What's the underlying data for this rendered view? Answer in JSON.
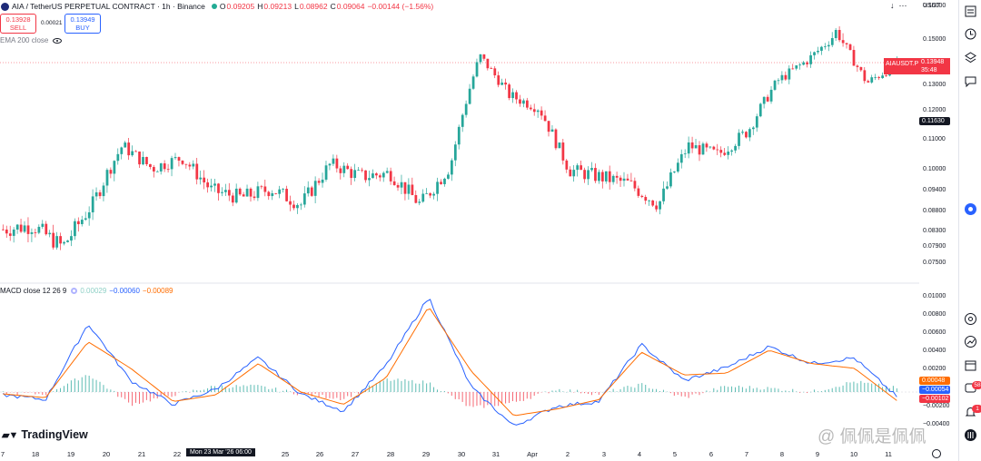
{
  "header": {
    "title": "AIA / TetherUS PERPETUAL CONTRACT · 1h · Binance",
    "ohlc": [
      {
        "label": "O",
        "value": "0.09205"
      },
      {
        "label": "H",
        "value": "0.09213"
      },
      {
        "label": "L",
        "value": "0.08962"
      },
      {
        "label": "C",
        "value": "0.09064"
      }
    ],
    "change": "−0.00144 (−1.56%)",
    "sell_price": "0.13928",
    "sell_label": "SELL",
    "spread": "0.00021",
    "buy_price": "0.13949",
    "buy_label": "BUY",
    "currency": "USDT"
  },
  "indicators": {
    "ema_label": "EMA 200 close",
    "macd_label": "MACD close 12 26 9",
    "macd_hist": "0.00029",
    "macd_value": "−0.00060",
    "macd_signal": "−0.00089"
  },
  "price_axis": [
    "0.16000",
    "0.15000",
    "0.14000",
    "0.13000",
    "0.12000",
    "0.11000",
    "0.10000",
    "0.09400",
    "0.08800",
    "0.08300",
    "0.07900",
    "0.07500"
  ],
  "price_badges": {
    "symbol": "AIAUSDT.P",
    "last_price": "0.13948",
    "countdown": "35:48",
    "crosshair_price": "0.11630"
  },
  "macd_axis": [
    "0.01000",
    "0.00800",
    "0.00600",
    "0.00400",
    "0.00200",
    "−0.00200",
    "−0.00400"
  ],
  "macd_badges": {
    "hist": "0.00048",
    "macd": "−0.00054",
    "signal": "−0.00102"
  },
  "time_axis": [
    "7",
    "18",
    "19",
    "20",
    "21",
    "22",
    "25",
    "26",
    "27",
    "28",
    "29",
    "30",
    "31",
    "Apr",
    "2",
    "3",
    "4",
    "5",
    "6",
    "7",
    "8",
    "9",
    "10",
    "11"
  ],
  "time_cursor": "Mon 23 Mar '26  06:00",
  "branding": "TradingView",
  "watermark": "@ 佩佩是佩佩",
  "toolbar": {
    "badge_alerts": "58",
    "badge_notifications": "1"
  },
  "colors": {
    "up": "#26a69a",
    "down": "#f23645",
    "macd": "#2962ff",
    "signal": "#ff6d00",
    "accent": "#2962ff"
  },
  "chart_data": {
    "type": "candlestick",
    "interval": "1h",
    "ylim": [
      0.075,
      0.16
    ],
    "close_path_approx": [
      {
        "x": "Mar 17",
        "y": 0.0835
      },
      {
        "x": "Mar 18",
        "y": 0.0845
      },
      {
        "x": "Mar 18 late",
        "y": 0.079
      },
      {
        "x": "Mar 19",
        "y": 0.09
      },
      {
        "x": "Mar 20",
        "y": 0.108
      },
      {
        "x": "Mar 20 late",
        "y": 0.1005
      },
      {
        "x": "Mar 21",
        "y": 0.104
      },
      {
        "x": "Mar 22",
        "y": 0.094
      },
      {
        "x": "Mar 23",
        "y": 0.092
      },
      {
        "x": "Mar 24",
        "y": 0.0945
      },
      {
        "x": "Mar 25",
        "y": 0.09
      },
      {
        "x": "Mar 25 late",
        "y": 0.102
      },
      {
        "x": "Mar 26",
        "y": 0.098
      },
      {
        "x": "Mar 27",
        "y": 0.099
      },
      {
        "x": "Mar 28",
        "y": 0.09
      },
      {
        "x": "Mar 29",
        "y": 0.101
      },
      {
        "x": "Mar 30",
        "y": 0.143
      },
      {
        "x": "Mar 30 late",
        "y": 0.126
      },
      {
        "x": "Mar 31",
        "y": 0.121
      },
      {
        "x": "Apr 1",
        "y": 0.1
      },
      {
        "x": "Apr 2",
        "y": 0.098
      },
      {
        "x": "Apr 3",
        "y": 0.096
      },
      {
        "x": "Apr 4",
        "y": 0.09
      },
      {
        "x": "Apr 5",
        "y": 0.108
      },
      {
        "x": "Apr 6",
        "y": 0.105
      },
      {
        "x": "Apr 7",
        "y": 0.113
      },
      {
        "x": "Apr 8",
        "y": 0.132
      },
      {
        "x": "Apr 9",
        "y": 0.141
      },
      {
        "x": "Apr 10",
        "y": 0.153
      },
      {
        "x": "Apr 10 late",
        "y": 0.131
      },
      {
        "x": "Apr 11",
        "y": 0.1395
      }
    ],
    "macd_path_approx": [
      {
        "x": "Mar 17",
        "macd": -0.0003,
        "signal": -0.0002
      },
      {
        "x": "Mar 19",
        "macd": -0.0008,
        "signal": -0.0006
      },
      {
        "x": "Mar 20",
        "macd": 0.0072,
        "signal": 0.0053
      },
      {
        "x": "Mar 21",
        "macd": 0.0012,
        "signal": 0.0025
      },
      {
        "x": "Mar 22",
        "macd": -0.0013,
        "signal": -0.001
      },
      {
        "x": "Mar 24",
        "macd": 0.0003,
        "signal": -0.0003
      },
      {
        "x": "Mar 25",
        "macd": 0.0036,
        "signal": 0.003
      },
      {
        "x": "Mar 27",
        "macd": -0.0002,
        "signal": 0.0
      },
      {
        "x": "Mar 28",
        "macd": -0.002,
        "signal": -0.0013
      },
      {
        "x": "Mar 29",
        "macd": 0.0028,
        "signal": 0.0015
      },
      {
        "x": "Mar 30",
        "macd": 0.01,
        "signal": 0.009
      },
      {
        "x": "Mar 31",
        "macd": 0.0005,
        "signal": 0.0022
      },
      {
        "x": "Apr 2",
        "macd": -0.0036,
        "signal": -0.0025
      },
      {
        "x": "Apr 3",
        "macd": -0.0015,
        "signal": -0.0018
      },
      {
        "x": "Apr 4",
        "macd": -0.001,
        "signal": -0.0008
      },
      {
        "x": "Apr 5",
        "macd": 0.005,
        "signal": 0.0042
      },
      {
        "x": "Apr 6",
        "macd": 0.0012,
        "signal": 0.0018
      },
      {
        "x": "Apr 7",
        "macd": 0.0026,
        "signal": 0.002
      },
      {
        "x": "Apr 8",
        "macd": 0.0048,
        "signal": 0.0044
      },
      {
        "x": "Apr 9",
        "macd": 0.003,
        "signal": 0.003
      },
      {
        "x": "Apr 10",
        "macd": 0.0036,
        "signal": 0.0025
      },
      {
        "x": "Apr 11",
        "macd": -0.0005,
        "signal": -0.0009
      }
    ]
  }
}
